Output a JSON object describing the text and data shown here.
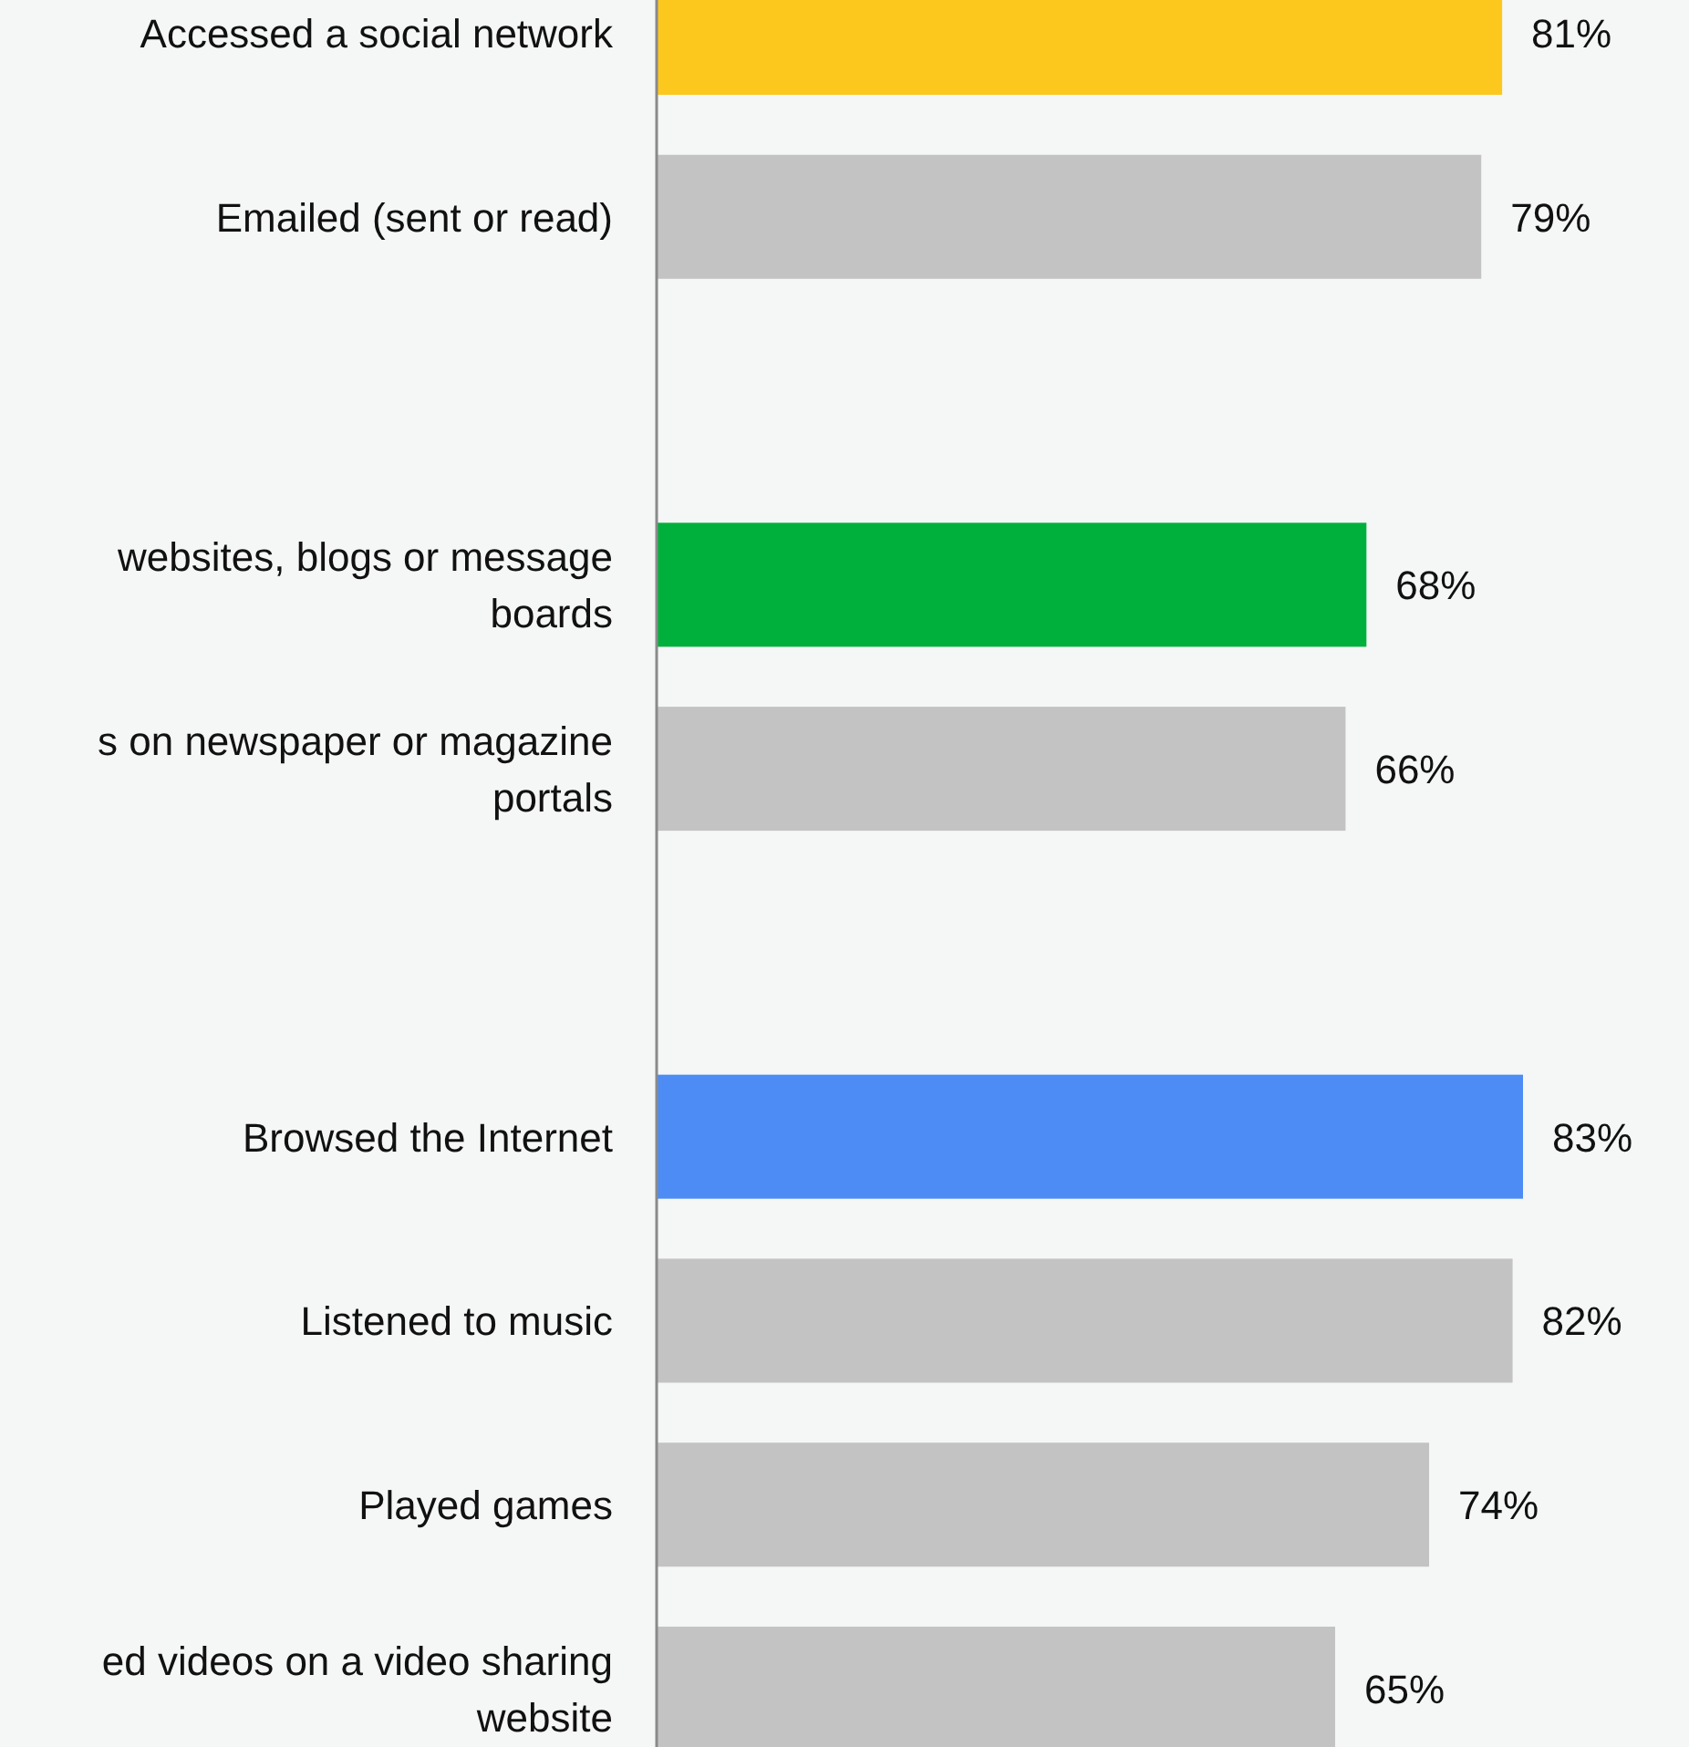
{
  "chart_data": {
    "type": "bar",
    "orientation": "horizontal",
    "categories": [
      "Accessed a social network",
      "Emailed (sent or read)",
      null,
      "websites, blogs or message boards",
      "s on newspaper or magazine portals",
      null,
      "Browsed the Internet",
      "Listened to music",
      "Played games",
      "ed videos on a video sharing website"
    ],
    "values": [
      81,
      79,
      null,
      68,
      66,
      null,
      83,
      82,
      74,
      65
    ],
    "colors": [
      "#fdc81e",
      "#c3c3c3",
      null,
      "#00b03c",
      "#c3c3c3",
      null,
      "#4d8cf5",
      "#c3c3c3",
      "#c3c3c3",
      "#c3c3c3"
    ],
    "value_labels": [
      "81%",
      "79%",
      null,
      "68%",
      "66%",
      null,
      "83%",
      "82%",
      "74%",
      "65%"
    ]
  }
}
